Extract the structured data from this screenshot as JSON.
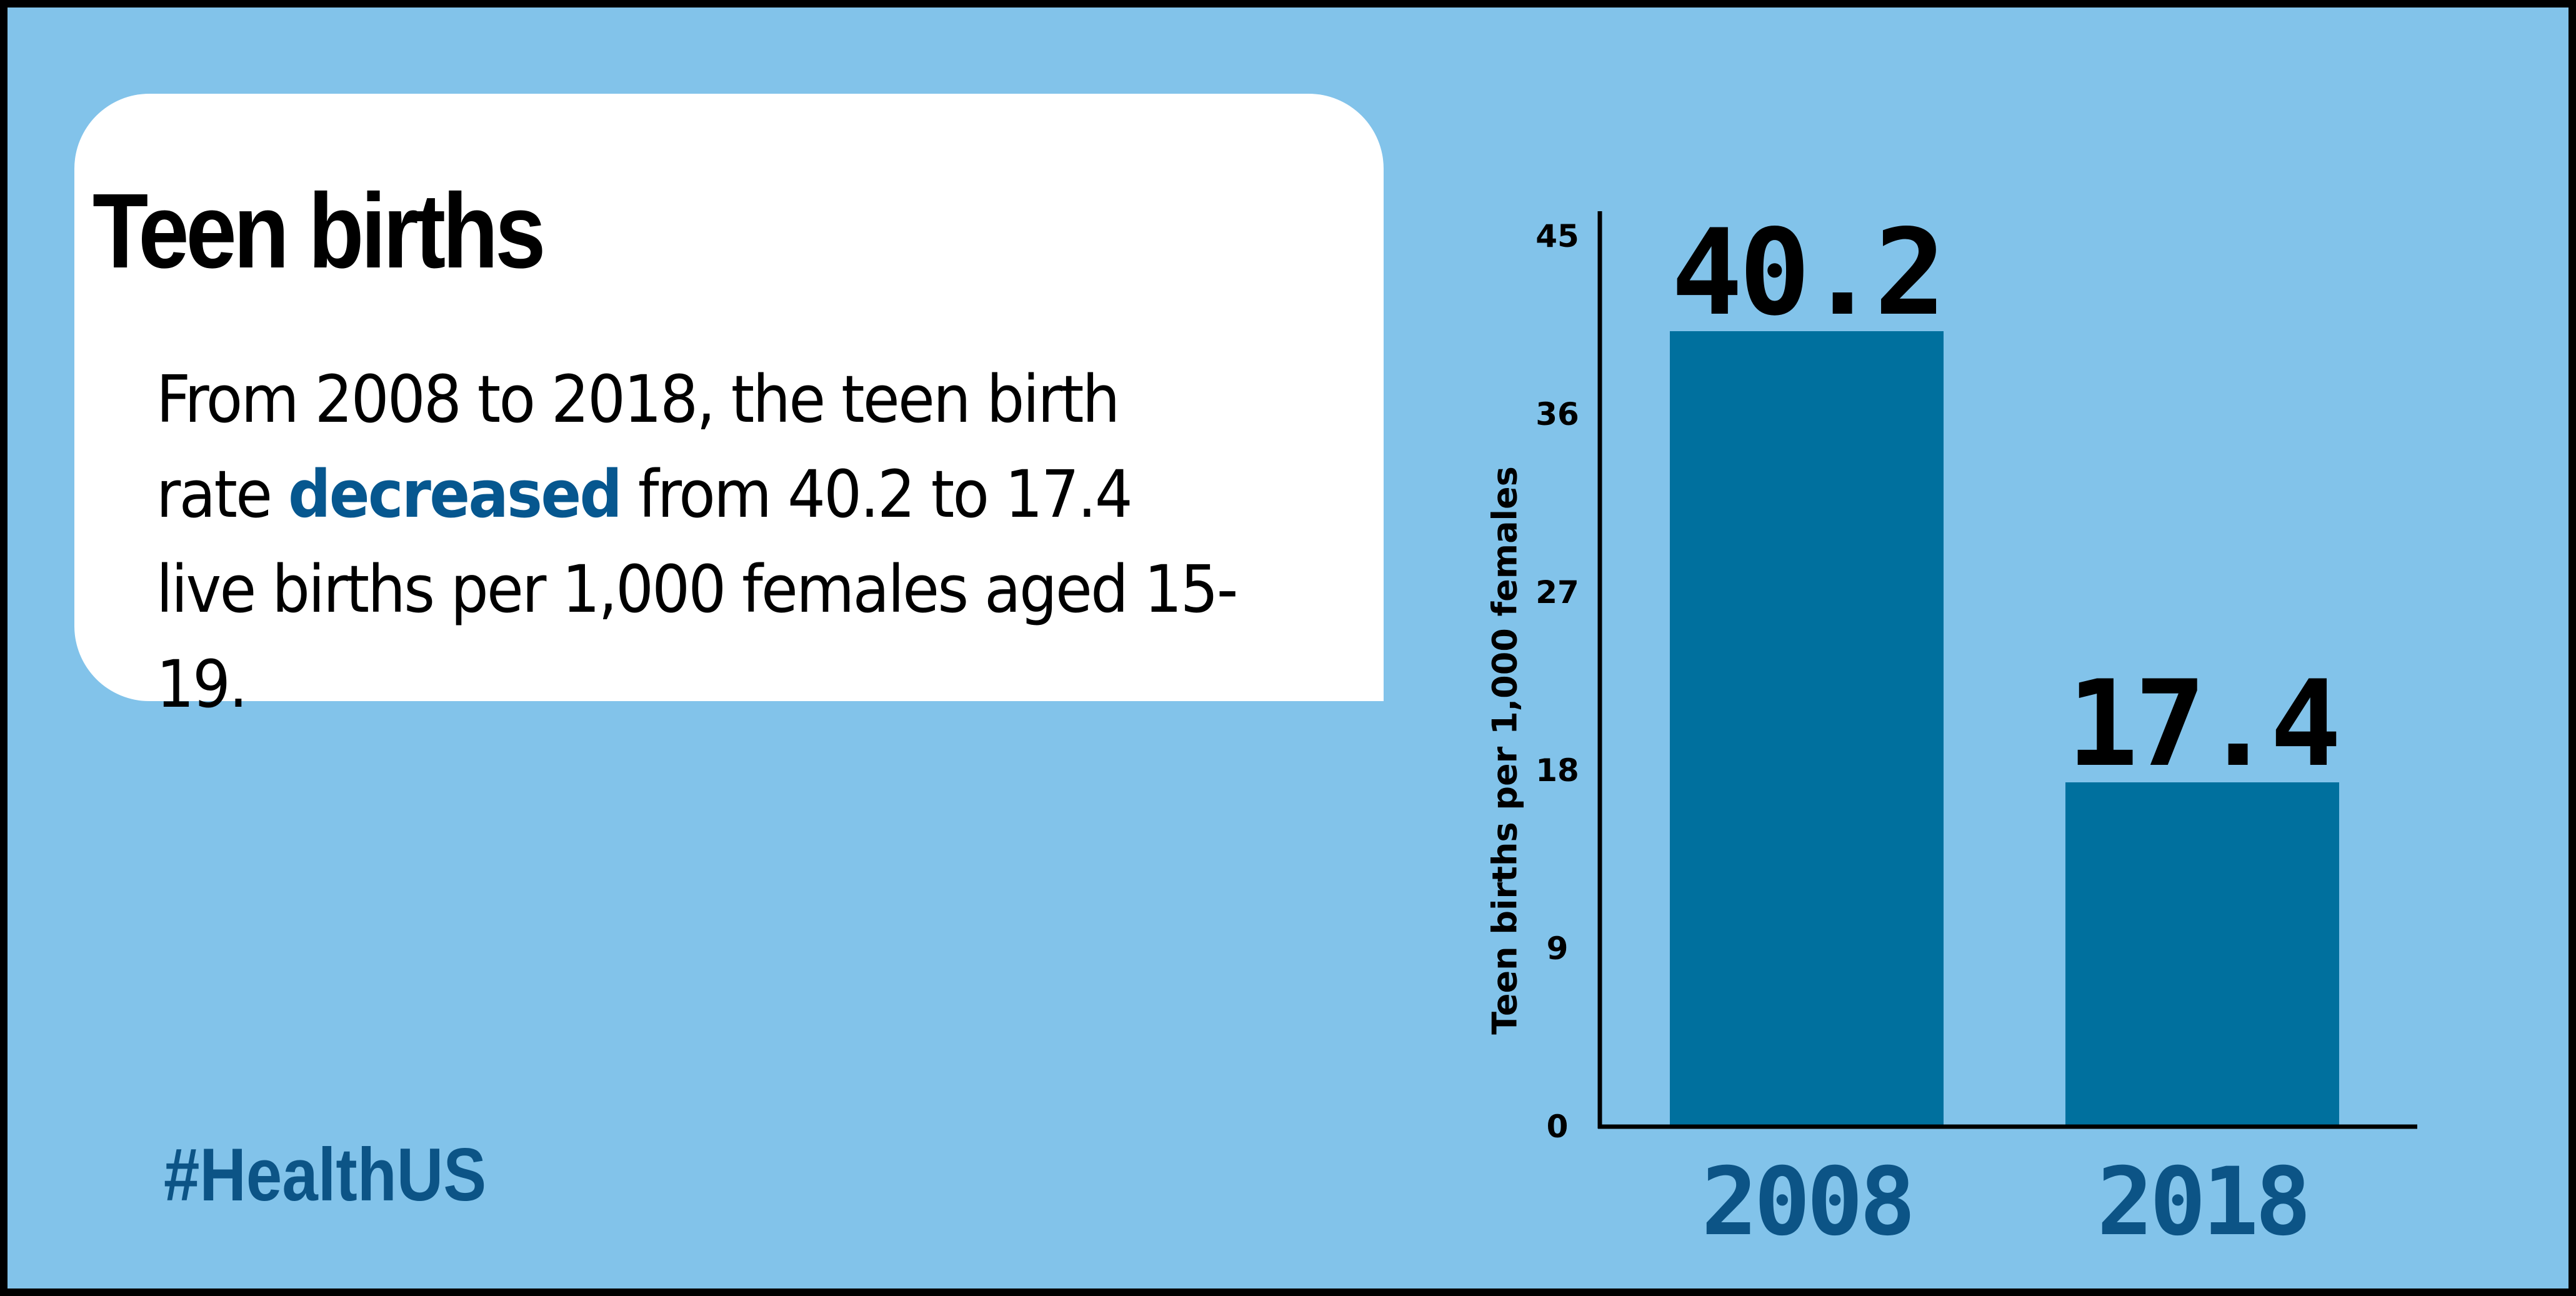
{
  "card": {
    "title": "Teen births",
    "body_before": "From 2008 to 2018, the teen birth rate ",
    "body_highlight": "decreased",
    "body_after": " from 40.2 to 17.4 live births per 1,000 females aged 15-19."
  },
  "hashtag": "#HealthUS",
  "colors": {
    "background": "#82C3EA",
    "bar": "#00709E",
    "highlight_text": "#06578F",
    "category_label": "#0C5486"
  },
  "chart_data": {
    "type": "bar",
    "categories": [
      "2008",
      "2018"
    ],
    "values": [
      40.2,
      17.4
    ],
    "value_labels": [
      "40.2",
      "17.4"
    ],
    "ylabel": "Teen births per 1,000 females",
    "ylim": [
      0,
      45
    ],
    "yticks": [
      0,
      9,
      18,
      27,
      36,
      45
    ],
    "grid": false,
    "legend": "none"
  }
}
